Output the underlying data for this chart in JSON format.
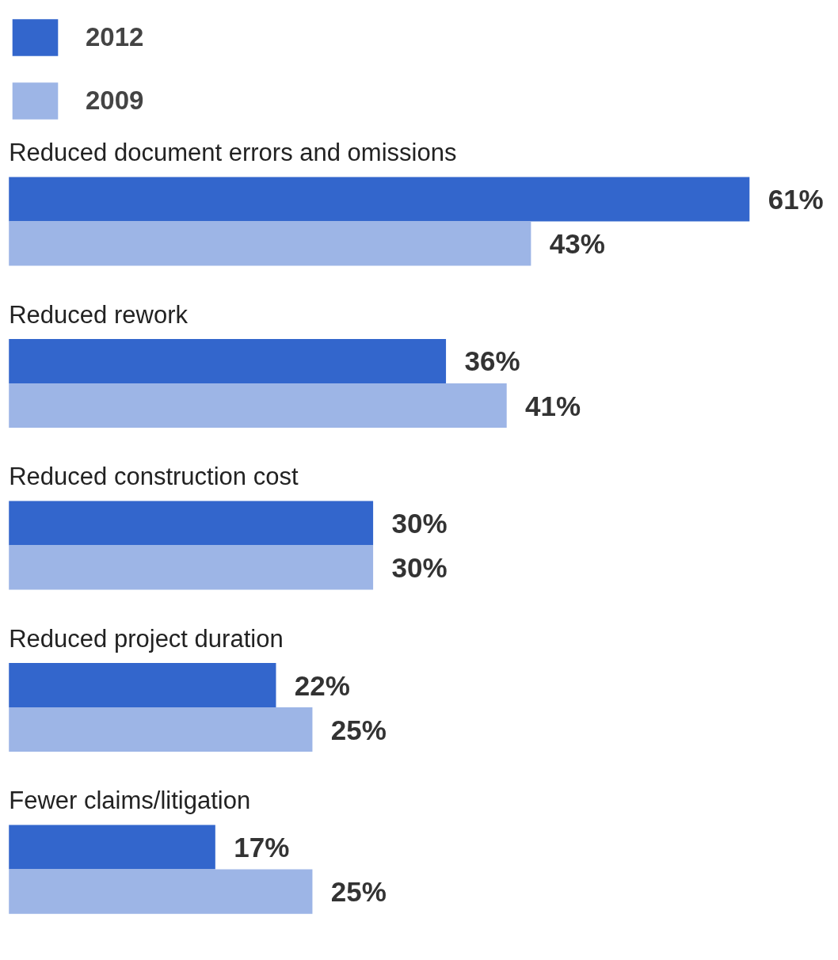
{
  "chart_data": {
    "type": "bar",
    "orientation": "horizontal",
    "categories": [
      "Reduced document errors and omissions",
      "Reduced rework",
      "Reduced construction cost",
      "Reduced project duration",
      "Fewer claims/litigation"
    ],
    "series": [
      {
        "name": "2012",
        "color": "#3366cc",
        "values": [
          61,
          36,
          30,
          22,
          17
        ],
        "value_labels": [
          "61%",
          "36%",
          "30%",
          "22%",
          "17%"
        ]
      },
      {
        "name": "2009",
        "color": "#9db5e6",
        "values": [
          43,
          41,
          30,
          25,
          25
        ],
        "value_labels": [
          "43%",
          "41%",
          "30%",
          "25%",
          "25%"
        ]
      }
    ],
    "legend": "top left",
    "grid": false
  }
}
